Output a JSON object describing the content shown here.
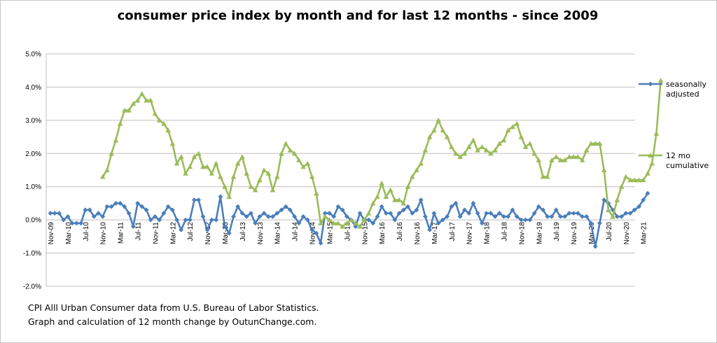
{
  "chart_data": {
    "type": "line",
    "title": "consumer price index by month and for last 12 months - since 2009",
    "xlabel": "",
    "ylabel": "",
    "ylim": [
      -2.0,
      5.0
    ],
    "y_ticks": [
      "5.0%",
      "4.0%",
      "3.0%",
      "2.0%",
      "1.0%",
      "0.0%",
      "-1.0%",
      "-2.0%"
    ],
    "x_tick_labels": [
      "Nov-09",
      "Mar-10",
      "Jul-10",
      "Nov-10",
      "Mar-11",
      "Jul-11",
      "Nov-11",
      "Mar-12",
      "Jul-12",
      "Nov-12",
      "Mar-13",
      "Jul-13",
      "Nov-13",
      "Mar-14",
      "Jul-14",
      "Nov-14",
      "Mar-15",
      "Jul-15",
      "Nov-15",
      "Mar-16",
      "Jul-16",
      "Nov-16",
      "Mar-17",
      "Jul-17",
      "Nov-17",
      "Mar-18",
      "Jul-18",
      "Nov-18",
      "Mar-19",
      "Jul-19",
      "Nov-19",
      "Mar-20",
      "Jul-20",
      "Nov-20",
      "Mar-21"
    ],
    "grid": "horizontal",
    "legend_position": "right",
    "series": [
      {
        "name": "seasonally adjusted",
        "legend_lines": [
          "seasonally",
          "adjusted"
        ],
        "color": "#4a7ebb",
        "marker": "diamond",
        "start_index": 0,
        "values": [
          0.2,
          0.2,
          0.2,
          0.0,
          0.1,
          -0.1,
          -0.1,
          -0.1,
          0.3,
          0.3,
          0.1,
          0.2,
          0.1,
          0.4,
          0.4,
          0.5,
          0.5,
          0.4,
          0.2,
          -0.2,
          0.5,
          0.4,
          0.3,
          0.0,
          0.1,
          0.0,
          0.2,
          0.4,
          0.3,
          0.0,
          -0.3,
          0.0,
          0.0,
          0.6,
          0.6,
          0.1,
          -0.3,
          0.0,
          0.0,
          0.7,
          -0.2,
          -0.4,
          0.1,
          0.4,
          0.2,
          0.1,
          0.2,
          -0.1,
          0.1,
          0.2,
          0.1,
          0.1,
          0.2,
          0.3,
          0.4,
          0.3,
          0.1,
          -0.1,
          0.1,
          0.0,
          -0.3,
          -0.4,
          -0.7,
          0.2,
          0.2,
          0.1,
          0.4,
          0.3,
          0.1,
          0.0,
          -0.2,
          0.2,
          0.0,
          0.0,
          -0.1,
          0.1,
          0.4,
          0.2,
          0.2,
          0.0,
          0.2,
          0.3,
          0.4,
          0.2,
          0.3,
          0.6,
          0.1,
          -0.3,
          0.2,
          -0.1,
          0.0,
          0.1,
          0.4,
          0.5,
          0.1,
          0.3,
          0.2,
          0.5,
          0.2,
          -0.1,
          0.2,
          0.2,
          0.1,
          0.2,
          0.1,
          0.1,
          0.3,
          0.1,
          0.0,
          0.0,
          0.0,
          0.2,
          0.4,
          0.3,
          0.1,
          0.1,
          0.3,
          0.1,
          0.1,
          0.2,
          0.2,
          0.2,
          0.1,
          0.1,
          -0.1,
          -0.8,
          -0.1,
          0.6,
          0.5,
          0.3,
          0.1,
          0.1,
          0.2,
          0.2,
          0.3,
          0.4,
          0.6,
          0.8
        ]
      },
      {
        "name": "12 mo cumulative",
        "legend_lines": [
          "12 mo",
          "cumulative"
        ],
        "color": "#9bbb59",
        "marker": "triangle",
        "start_index": 12,
        "values": [
          1.3,
          1.5,
          2.0,
          2.4,
          2.9,
          3.3,
          3.3,
          3.5,
          3.6,
          3.8,
          3.6,
          3.6,
          3.2,
          3.0,
          2.9,
          2.7,
          2.3,
          1.7,
          1.9,
          1.4,
          1.6,
          1.9,
          2.0,
          1.6,
          1.6,
          1.4,
          1.7,
          1.3,
          1.0,
          0.7,
          1.3,
          1.7,
          1.9,
          1.4,
          1.0,
          0.9,
          1.2,
          1.5,
          1.4,
          0.9,
          1.3,
          2.0,
          2.3,
          2.1,
          2.0,
          1.8,
          1.6,
          1.7,
          1.3,
          0.8,
          -0.1,
          0.1,
          0.0,
          -0.1,
          -0.1,
          -0.2,
          -0.1,
          0.0,
          -0.1,
          -0.2,
          0.0,
          0.2,
          0.5,
          0.7,
          1.1,
          0.7,
          0.9,
          0.6,
          0.6,
          0.5,
          1.0,
          1.3,
          1.5,
          1.7,
          2.1,
          2.5,
          2.7,
          3.0,
          2.7,
          2.5,
          2.2,
          2.0,
          1.9,
          2.0,
          2.2,
          2.4,
          2.1,
          2.2,
          2.1,
          2.0,
          2.1,
          2.3,
          2.4,
          2.7,
          2.8,
          2.9,
          2.5,
          2.2,
          2.3,
          2.0,
          1.8,
          1.3,
          1.3,
          1.8,
          1.9,
          1.8,
          1.8,
          1.9,
          1.9,
          1.9,
          1.8,
          2.1,
          2.3,
          2.3,
          2.3,
          1.5,
          0.3,
          0.1,
          0.6,
          1.0,
          1.3,
          1.2,
          1.2,
          1.2,
          1.2,
          1.4,
          1.7,
          2.6,
          4.2
        ]
      }
    ]
  },
  "notes": {
    "line1": "CPI Alll Urban Consumer data from U.S. Bureau of Labor Statistics.",
    "line2": "Graph and calculation of 12 month change by OutunChange.com."
  }
}
